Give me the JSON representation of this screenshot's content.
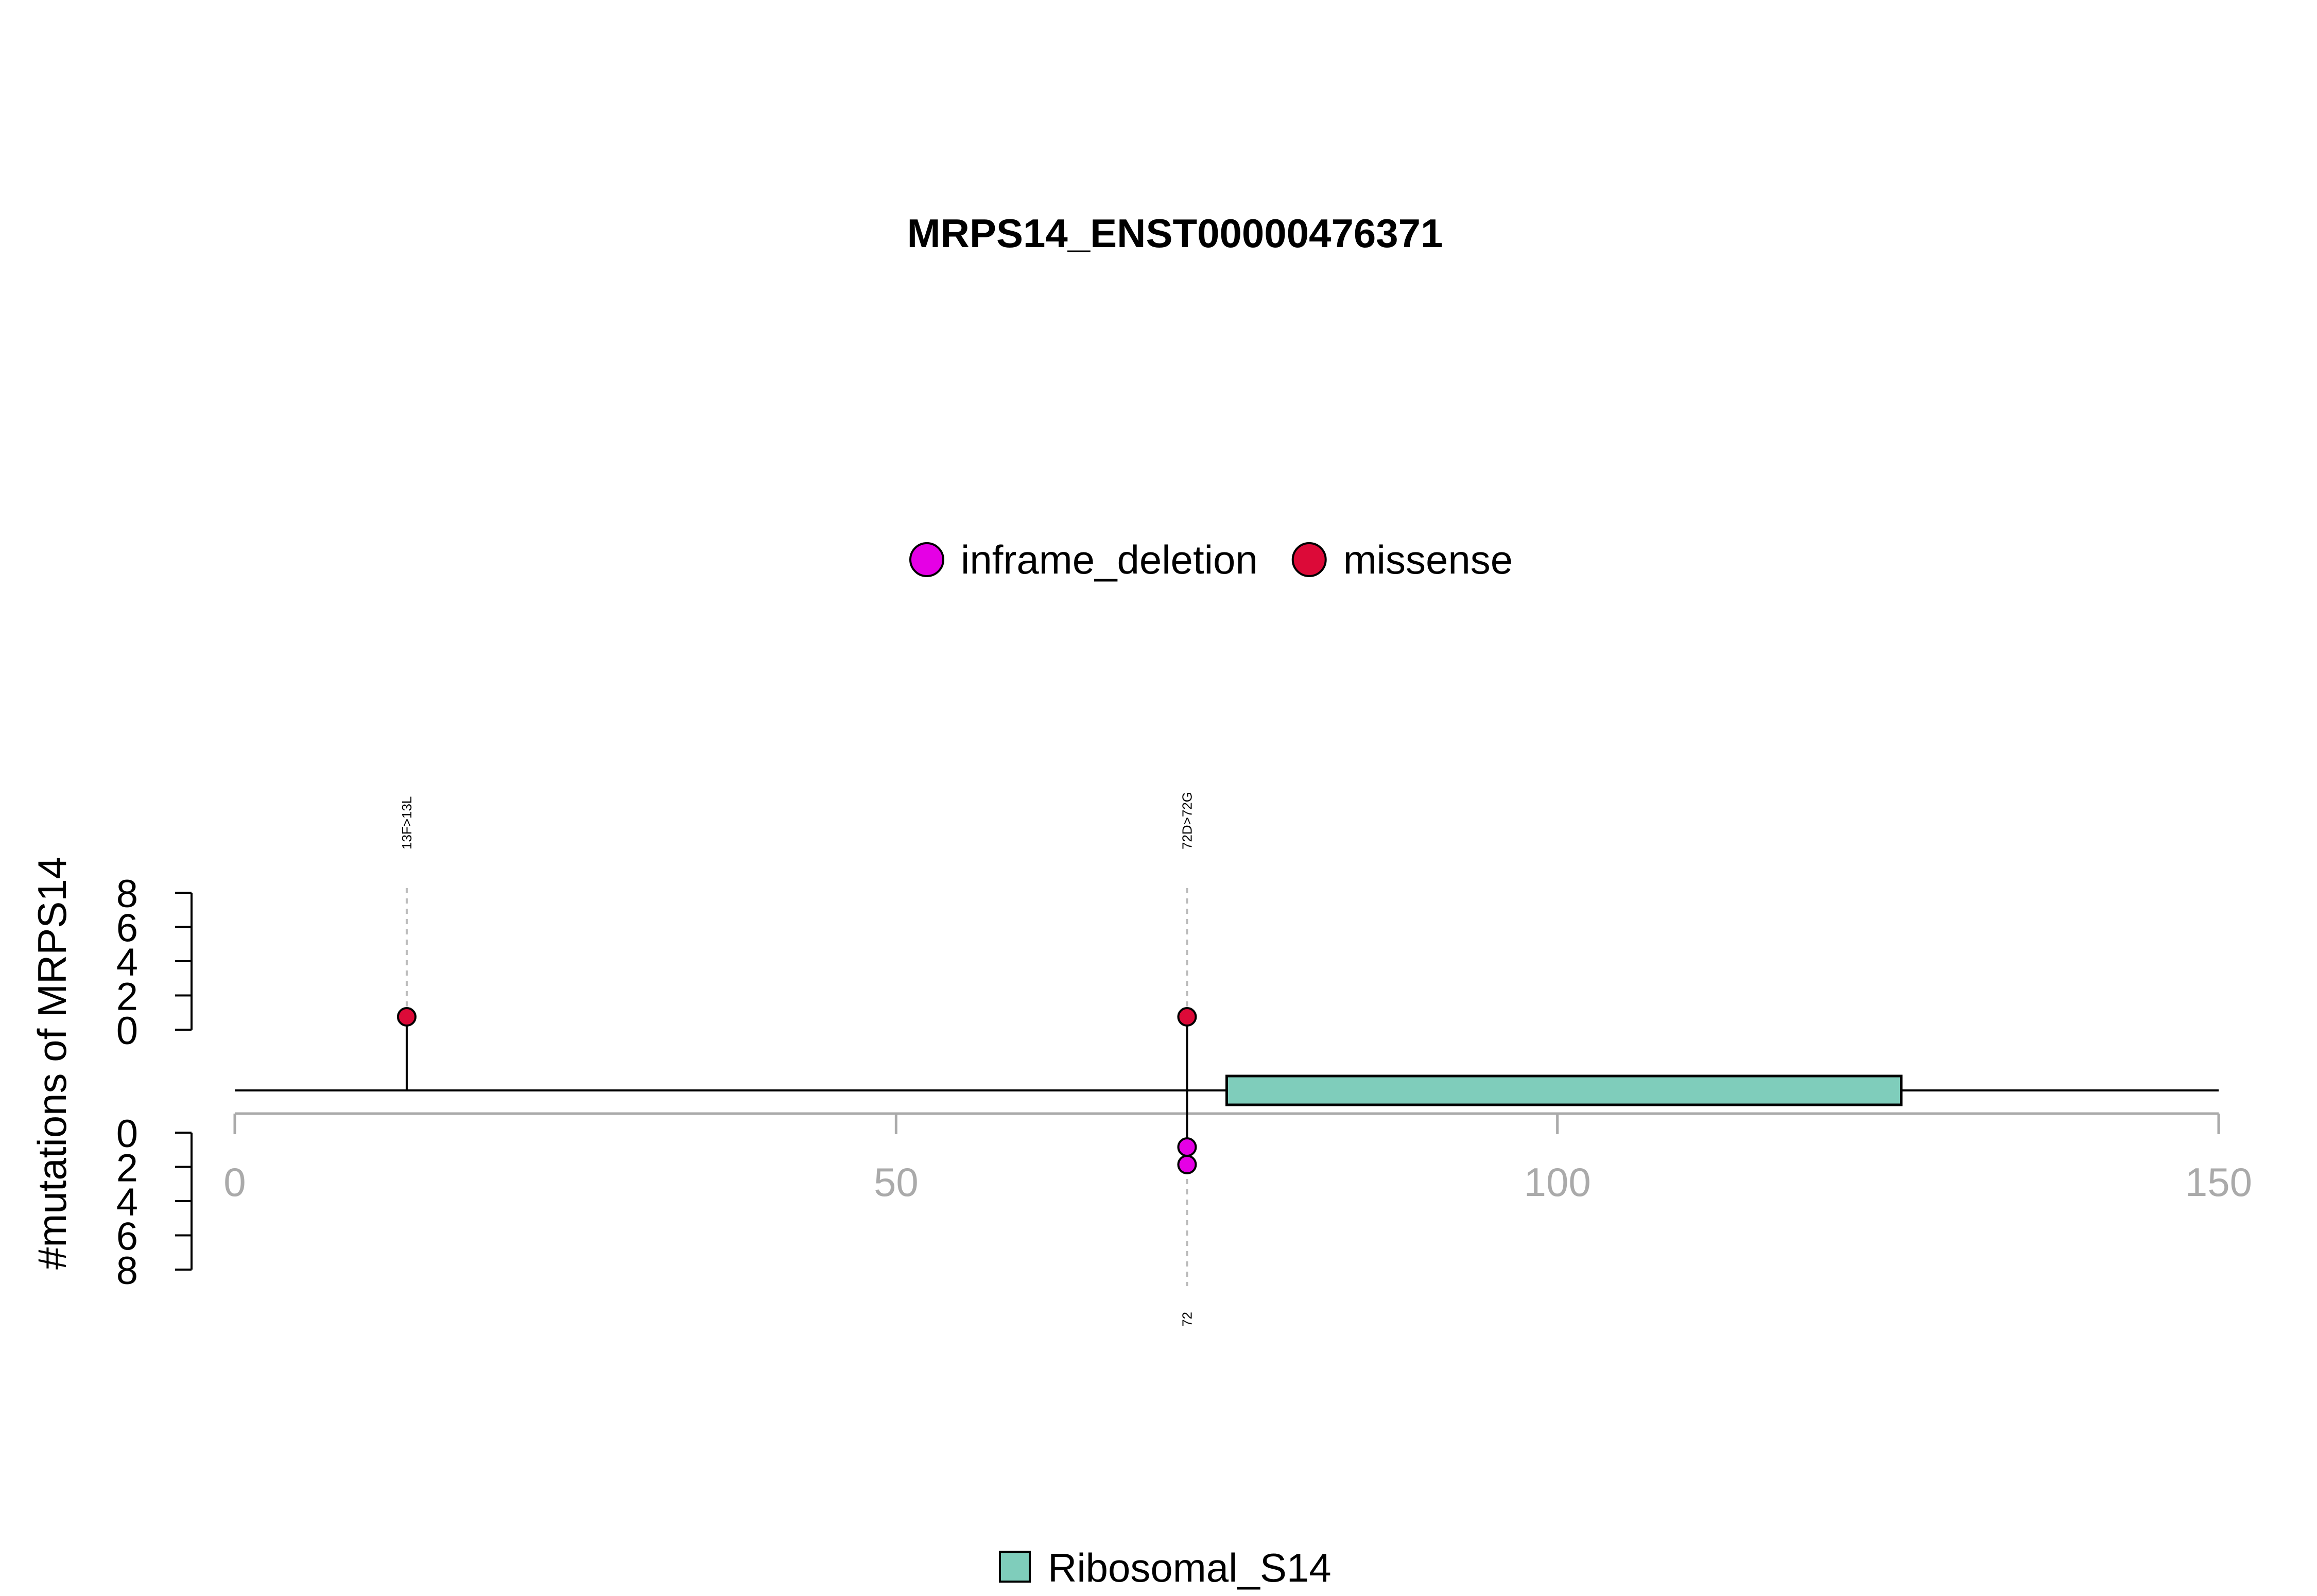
{
  "chart_data": {
    "type": "lollipop",
    "title": "MRPS14_ENST00000476371",
    "ylabel": "#mutations of MRPS14",
    "xlim": [
      0,
      150
    ],
    "x_ticks": [
      "0",
      "50",
      "100",
      "150"
    ],
    "y_ticks_top": [
      "0",
      "2",
      "4",
      "6",
      "8"
    ],
    "y_ticks_bottom": [
      "0",
      "2",
      "4",
      "6",
      "8"
    ],
    "ylim": [
      0,
      8
    ],
    "legend_top": [
      {
        "name": "inframe_deletion",
        "color": "#E500E5"
      },
      {
        "name": "missense",
        "color": "#DC0A38"
      }
    ],
    "legend_bottom": [
      {
        "name": "Ribosomal_S14",
        "color": "#7FCDBB"
      }
    ],
    "top_mutations": [
      {
        "position": 13,
        "count": 1,
        "type": "missense",
        "label": "13F>13L"
      },
      {
        "position": 72,
        "count": 1,
        "type": "missense",
        "label": "72D>72G"
      }
    ],
    "bottom_mutations": [
      {
        "position": 72,
        "count": 2,
        "type": "inframe_deletion",
        "label": "72"
      }
    ],
    "domains": [
      {
        "name": "Ribosomal_S14",
        "start": 75,
        "end": 126,
        "color": "#7FCDBB"
      }
    ],
    "protein_length": 150
  }
}
